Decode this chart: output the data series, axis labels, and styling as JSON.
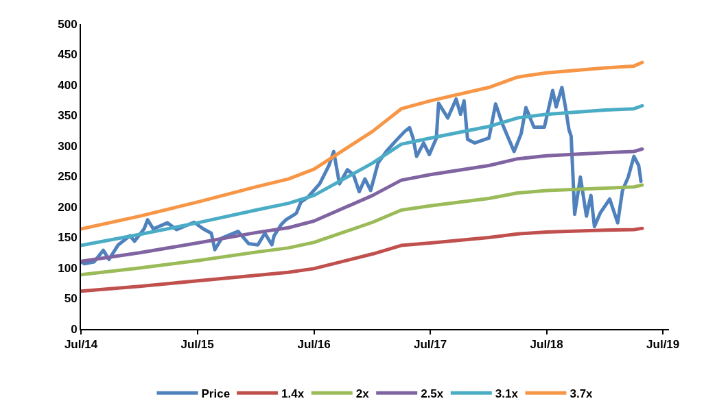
{
  "chart_data": {
    "type": "line",
    "xlim": [
      "2014-07-01",
      "2019-07-20"
    ],
    "xticks": [
      {
        "value": "2014-07-01",
        "label": "Jul/14"
      },
      {
        "value": "2015-07-01",
        "label": "Jul/15"
      },
      {
        "value": "2016-07-01",
        "label": "Jul/16"
      },
      {
        "value": "2017-07-01",
        "label": "Jul/17"
      },
      {
        "value": "2018-07-01",
        "label": "Jul/18"
      },
      {
        "value": "2019-07-01",
        "label": "Jul/19"
      }
    ],
    "ylim": [
      0,
      500
    ],
    "yticks": [
      0,
      50,
      100,
      150,
      200,
      250,
      300,
      350,
      400,
      450,
      500
    ],
    "legend": "bottom",
    "marker": "none",
    "line_style": "solid",
    "series": [
      {
        "name": "Price",
        "color": "#4f81bd",
        "x": [
          "2014-07-02",
          "2014-07-12",
          "2014-08-11",
          "2014-09-09",
          "2014-09-27",
          "2014-10-26",
          "2014-12-02",
          "2014-12-16",
          "2015-01-15",
          "2015-01-26",
          "2015-02-13",
          "2015-03-29",
          "2015-04-27",
          "2015-06-21",
          "2015-07-20",
          "2015-08-14",
          "2015-08-25",
          "2015-09-16",
          "2015-11-06",
          "2015-12-09",
          "2016-01-07",
          "2016-01-29",
          "2016-02-20",
          "2016-02-27",
          "2016-03-20",
          "2016-04-04",
          "2016-04-26",
          "2016-05-07",
          "2016-05-21",
          "2016-06-12",
          "2016-07-19",
          "2016-08-17",
          "2016-09-01",
          "2016-09-19",
          "2016-10-14",
          "2016-11-02",
          "2016-11-20",
          "2016-12-08",
          "2016-12-26",
          "2017-01-18",
          "2017-02-13",
          "2017-03-14",
          "2017-04-12",
          "2017-04-27",
          "2017-05-08",
          "2017-05-19",
          "2017-06-10",
          "2017-06-28",
          "2017-07-20",
          "2017-07-27",
          "2017-08-25",
          "2017-09-20",
          "2017-10-04",
          "2017-10-15",
          "2017-10-26",
          "2017-11-17",
          "2018-01-01",
          "2018-01-22",
          "2018-02-13",
          "2018-03-03",
          "2018-03-21",
          "2018-04-12",
          "2018-04-27",
          "2018-05-22",
          "2018-06-24",
          "2018-07-20",
          "2018-07-31",
          "2018-08-18",
          "2018-08-29",
          "2018-09-09",
          "2018-09-16",
          "2018-09-23",
          "2018-09-27",
          "2018-10-15",
          "2018-11-03",
          "2018-11-17",
          "2018-11-28",
          "2018-12-16",
          "2019-01-15",
          "2019-02-09",
          "2019-02-24",
          "2019-03-14",
          "2019-04-01",
          "2019-04-16",
          "2019-04-23"
        ],
        "values": [
          110,
          107,
          110,
          129,
          114,
          138,
          153,
          144,
          164,
          179,
          164,
          174,
          163,
          175,
          164,
          157,
          130,
          149,
          160,
          140,
          138,
          157,
          138,
          153,
          171,
          179,
          186,
          190,
          208,
          216,
          238,
          268,
          291,
          238,
          261,
          253,
          225,
          246,
          227,
          272,
          291,
          308,
          324,
          330,
          313,
          283,
          305,
          286,
          313,
          370,
          346,
          377,
          352,
          374,
          311,
          305,
          313,
          369,
          335,
          313,
          291,
          320,
          363,
          331,
          331,
          391,
          364,
          396,
          364,
          327,
          316,
          235,
          188,
          249,
          185,
          219,
          168,
          190,
          213,
          174,
          227,
          249,
          283,
          268,
          242
        ]
      },
      {
        "name": "1.4x",
        "color": "#c0504d",
        "x": [
          "2014-07-01",
          "2015-01-01",
          "2015-07-01",
          "2016-01-01",
          "2016-04-12",
          "2016-07-01",
          "2017-01-01",
          "2017-04-01",
          "2017-07-01",
          "2018-01-01",
          "2018-04-01",
          "2018-07-01",
          "2019-01-01",
          "2019-04-01",
          "2019-04-27"
        ],
        "values": [
          62,
          70,
          79,
          88,
          93,
          99,
          123,
          137,
          141,
          150,
          156,
          159,
          162,
          163,
          165
        ]
      },
      {
        "name": "2x",
        "color": "#9bbb59",
        "x": [
          "2014-07-01",
          "2015-01-01",
          "2015-07-01",
          "2016-01-01",
          "2016-04-12",
          "2016-07-01",
          "2017-01-01",
          "2017-04-01",
          "2017-07-01",
          "2018-01-01",
          "2018-04-01",
          "2018-07-01",
          "2019-01-01",
          "2019-04-01",
          "2019-04-27"
        ],
        "values": [
          89,
          100,
          112,
          126,
          133,
          142,
          175,
          195,
          202,
          214,
          223,
          227,
          231,
          233,
          236
        ]
      },
      {
        "name": "2.5x",
        "color": "#8064a2",
        "x": [
          "2014-07-01",
          "2015-01-01",
          "2015-07-01",
          "2016-01-01",
          "2016-04-12",
          "2016-07-01",
          "2017-01-01",
          "2017-04-01",
          "2017-07-01",
          "2018-01-01",
          "2018-04-01",
          "2018-07-01",
          "2019-01-01",
          "2019-04-01",
          "2019-04-27"
        ],
        "values": [
          111,
          125,
          141,
          158,
          166,
          177,
          219,
          244,
          253,
          268,
          279,
          284,
          289,
          291,
          295
        ]
      },
      {
        "name": "3.1x",
        "color": "#4bacc6",
        "x": [
          "2014-07-01",
          "2015-01-01",
          "2015-07-01",
          "2016-01-01",
          "2016-04-12",
          "2016-07-01",
          "2017-01-01",
          "2017-04-01",
          "2017-07-01",
          "2018-01-01",
          "2018-04-01",
          "2018-07-01",
          "2019-01-01",
          "2019-04-01",
          "2019-04-27"
        ],
        "values": [
          137,
          155,
          174,
          195,
          206,
          219,
          272,
          303,
          313,
          332,
          346,
          352,
          359,
          361,
          366
        ]
      },
      {
        "name": "3.7x",
        "color": "#f79646",
        "x": [
          "2014-07-01",
          "2015-01-01",
          "2015-07-01",
          "2016-01-01",
          "2016-04-12",
          "2016-07-01",
          "2017-01-01",
          "2017-04-01",
          "2017-07-01",
          "2018-01-01",
          "2018-04-01",
          "2018-07-01",
          "2019-01-01",
          "2019-04-01",
          "2019-04-27"
        ],
        "values": [
          164,
          185,
          208,
          233,
          246,
          262,
          324,
          361,
          374,
          396,
          413,
          420,
          428,
          431,
          437
        ]
      }
    ]
  }
}
